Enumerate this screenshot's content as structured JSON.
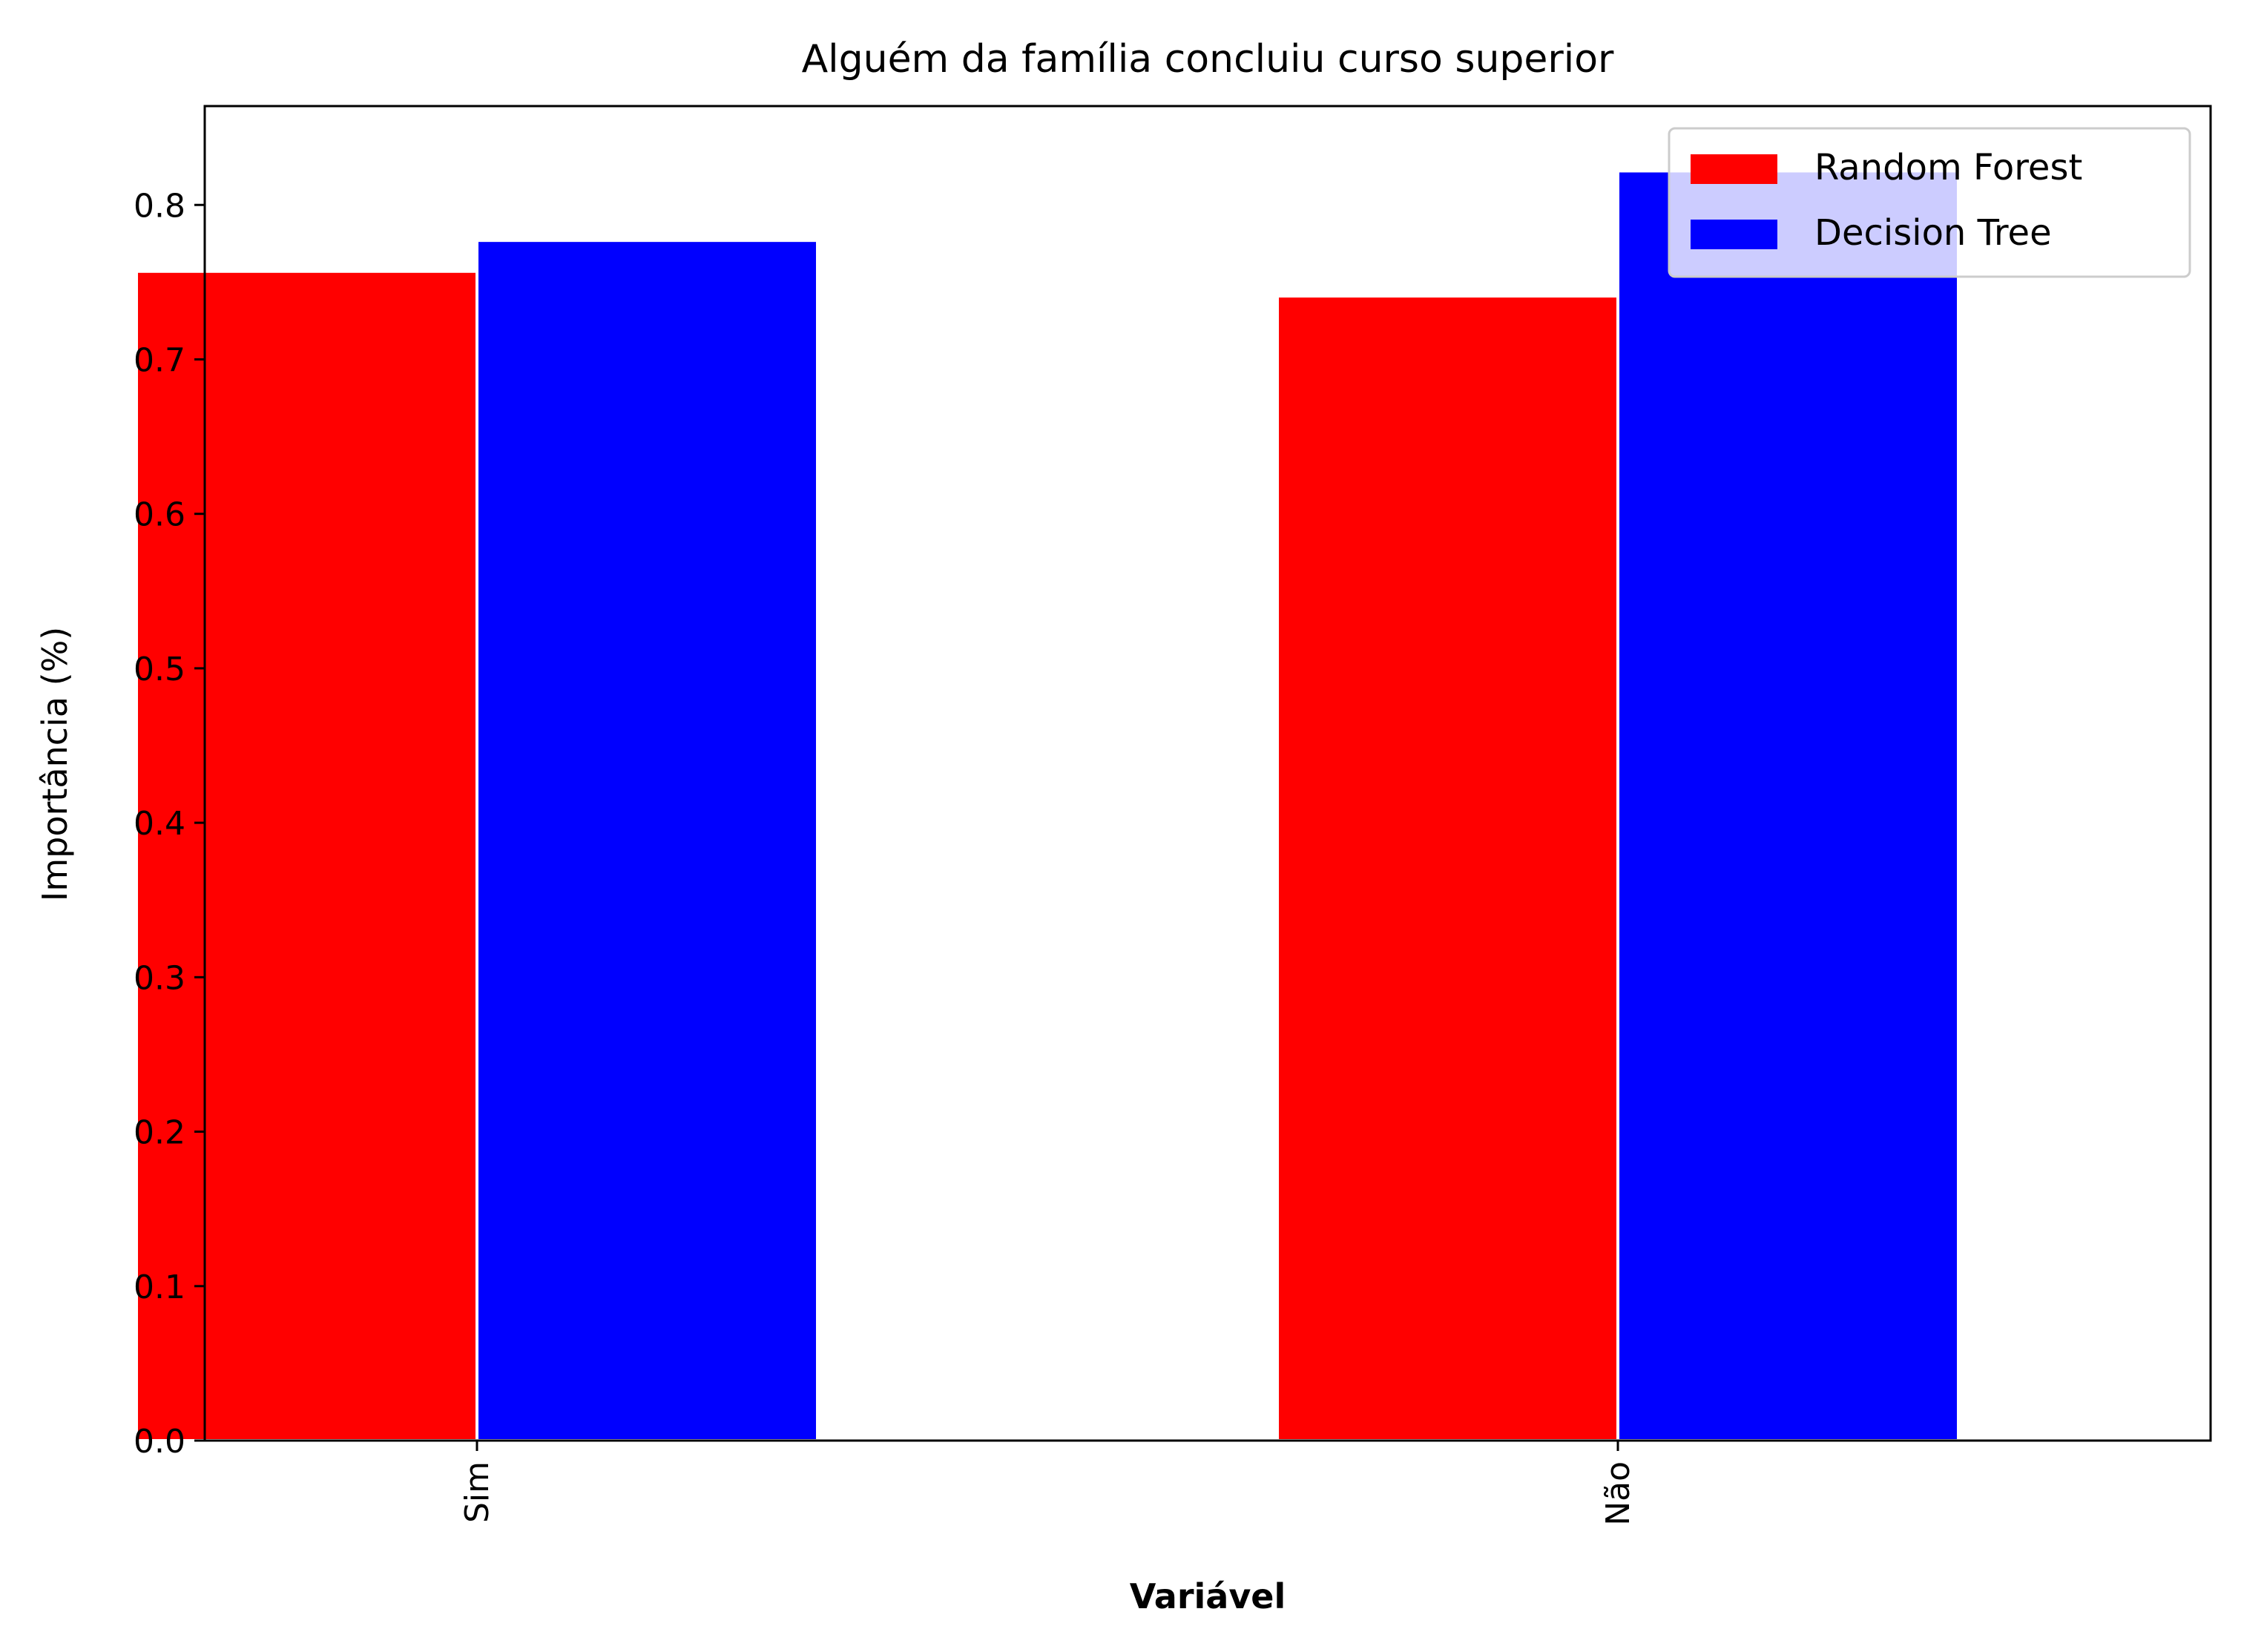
{
  "chart_data": {
    "type": "bar",
    "title": "Alguém da família concluiu curso superior",
    "xlabel": "Variável",
    "ylabel": "Importância (%)",
    "categories": [
      "Sim",
      "Não"
    ],
    "series": [
      {
        "name": "Random Forest",
        "color": "#ff0000",
        "values": [
          0.757,
          0.741
        ]
      },
      {
        "name": "Decision Tree",
        "color": "#0000ff",
        "values": [
          0.777,
          0.822
        ]
      }
    ],
    "ylim": [
      0,
      0.864
    ],
    "yticks": [
      "0.0",
      "0.1",
      "0.2",
      "0.3",
      "0.4",
      "0.5",
      "0.6",
      "0.7",
      "0.8"
    ],
    "grid": false,
    "legend_position": "top-right",
    "xtick_rotation": "vertical"
  }
}
